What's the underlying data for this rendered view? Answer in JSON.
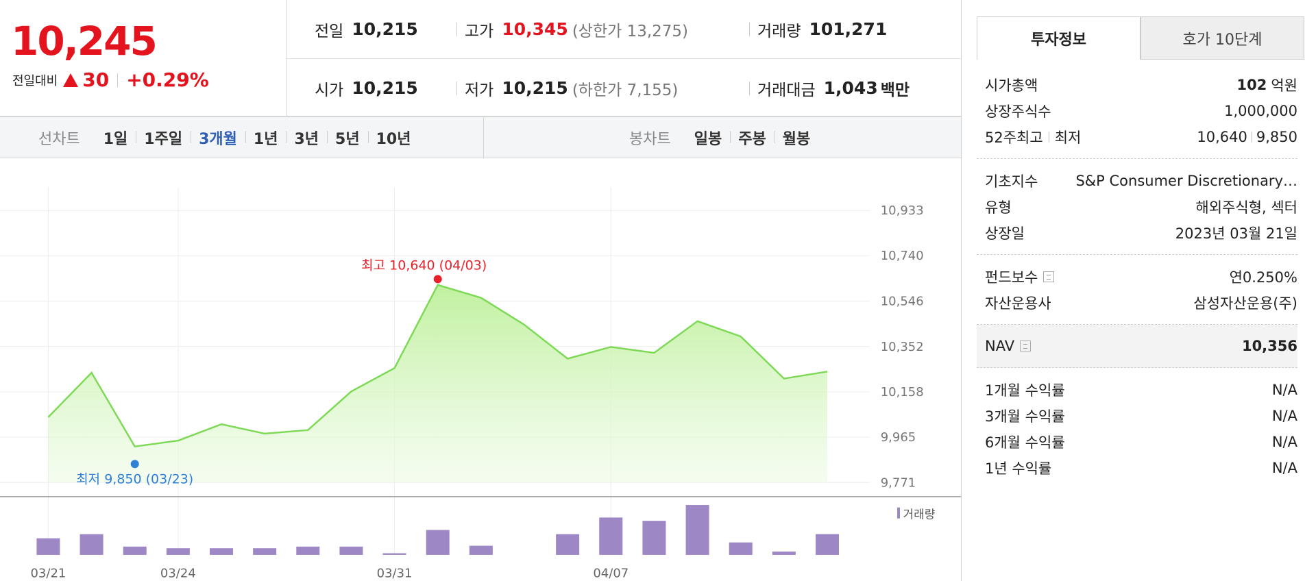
{
  "summary": {
    "price": "10,245",
    "change_label": "전일대비",
    "change": "30",
    "change_rate": "+0.29%"
  },
  "quotes": [
    [
      {
        "label": "전일",
        "value": "10,215"
      },
      {
        "label": "고가",
        "value": "10,345",
        "note": "(상한가 13,275)",
        "highlight": true
      },
      {
        "label": "거래량",
        "value": "101,271"
      }
    ],
    [
      {
        "label": "시가",
        "value": "10,215"
      },
      {
        "label": "저가",
        "value": "10,215",
        "note": "(하한가 7,155)"
      },
      {
        "label": "거래대금",
        "value": "1,043",
        "unit": "백만"
      }
    ]
  ],
  "chart_tabs": {
    "line": {
      "label": "선차트",
      "items": [
        "1일",
        "1주일",
        "3개월",
        "1년",
        "3년",
        "5년",
        "10년"
      ],
      "active": "3개월"
    },
    "candle": {
      "label": "봉차트",
      "items": [
        "일봉",
        "주봉",
        "월봉"
      ]
    }
  },
  "chart_data": [
    {
      "type": "area",
      "categories": [
        "03/21",
        null,
        null,
        "03/24",
        null,
        null,
        null,
        null,
        "03/31",
        null,
        null,
        null,
        null,
        "04/07",
        null,
        null,
        null,
        null,
        null
      ],
      "values": [
        10050,
        10240,
        9925,
        9950,
        10020,
        9980,
        9995,
        10160,
        10260,
        10615,
        10560,
        10445,
        10300,
        10350,
        10325,
        10460,
        10395,
        10215,
        10245
      ],
      "color": "#7ed957",
      "ylim": [
        9771,
        10933
      ],
      "yticks": [
        {
          "value": 9771,
          "label": "9,771"
        },
        {
          "value": 9965,
          "label": "9,965"
        },
        {
          "value": 10158,
          "label": "10,158"
        },
        {
          "value": 10352,
          "label": "10,352"
        },
        {
          "value": 10546,
          "label": "10,546"
        },
        {
          "value": 10740,
          "label": "10,740"
        },
        {
          "value": 10933,
          "label": "10,933"
        }
      ],
      "grid": true,
      "annotations": [
        {
          "label": "최고 10,640 (04/03)",
          "value": 10640,
          "color": "#e8202a",
          "at": "max"
        },
        {
          "label": "최저 9,850 (03/23)",
          "value": 9850,
          "color": "#2f7fd6",
          "at": "min"
        }
      ]
    },
    {
      "type": "bar",
      "series": [
        {
          "name": "거래량",
          "color": "#9d87c5",
          "values": [
            81000,
            101000,
            40500,
            32400,
            32400,
            32400,
            40500,
            40500,
            8100,
            121500,
            44600,
            0,
            101000,
            182000,
            166000,
            243000,
            60800,
            16200,
            101271
          ]
        }
      ]
    }
  ],
  "info": {
    "tabs": [
      "투자정보",
      "호가 10단계"
    ],
    "groups": [
      [
        {
          "label": "시가총액",
          "value": "102",
          "unit": "억원",
          "bold": true
        },
        {
          "label": "상장주식수",
          "value": "1,000,000"
        },
        {
          "label": "52주최고",
          "label2": "최저",
          "value": "10,640",
          "value2": "9,850"
        }
      ],
      [
        {
          "label": "기초지수",
          "value": "S&P Consumer Discretionary…"
        },
        {
          "label": "유형",
          "value": "해외주식형, 섹터"
        },
        {
          "label": "상장일",
          "value": "2023년 03월 21일"
        }
      ],
      [
        {
          "label": "펀드보수",
          "help": true,
          "value": "연0.250%"
        },
        {
          "label": "자산운용사",
          "value": "삼성자산운용(주)"
        }
      ],
      [
        {
          "label": "NAV",
          "help": true,
          "value": "10,356",
          "bold": true,
          "highlight": true
        }
      ],
      [
        {
          "label": "1개월 수익률",
          "value": "N/A"
        },
        {
          "label": "3개월 수익률",
          "value": "N/A"
        },
        {
          "label": "6개월 수익률",
          "value": "N/A"
        },
        {
          "label": "1년 수익률",
          "value": "N/A"
        }
      ]
    ]
  }
}
